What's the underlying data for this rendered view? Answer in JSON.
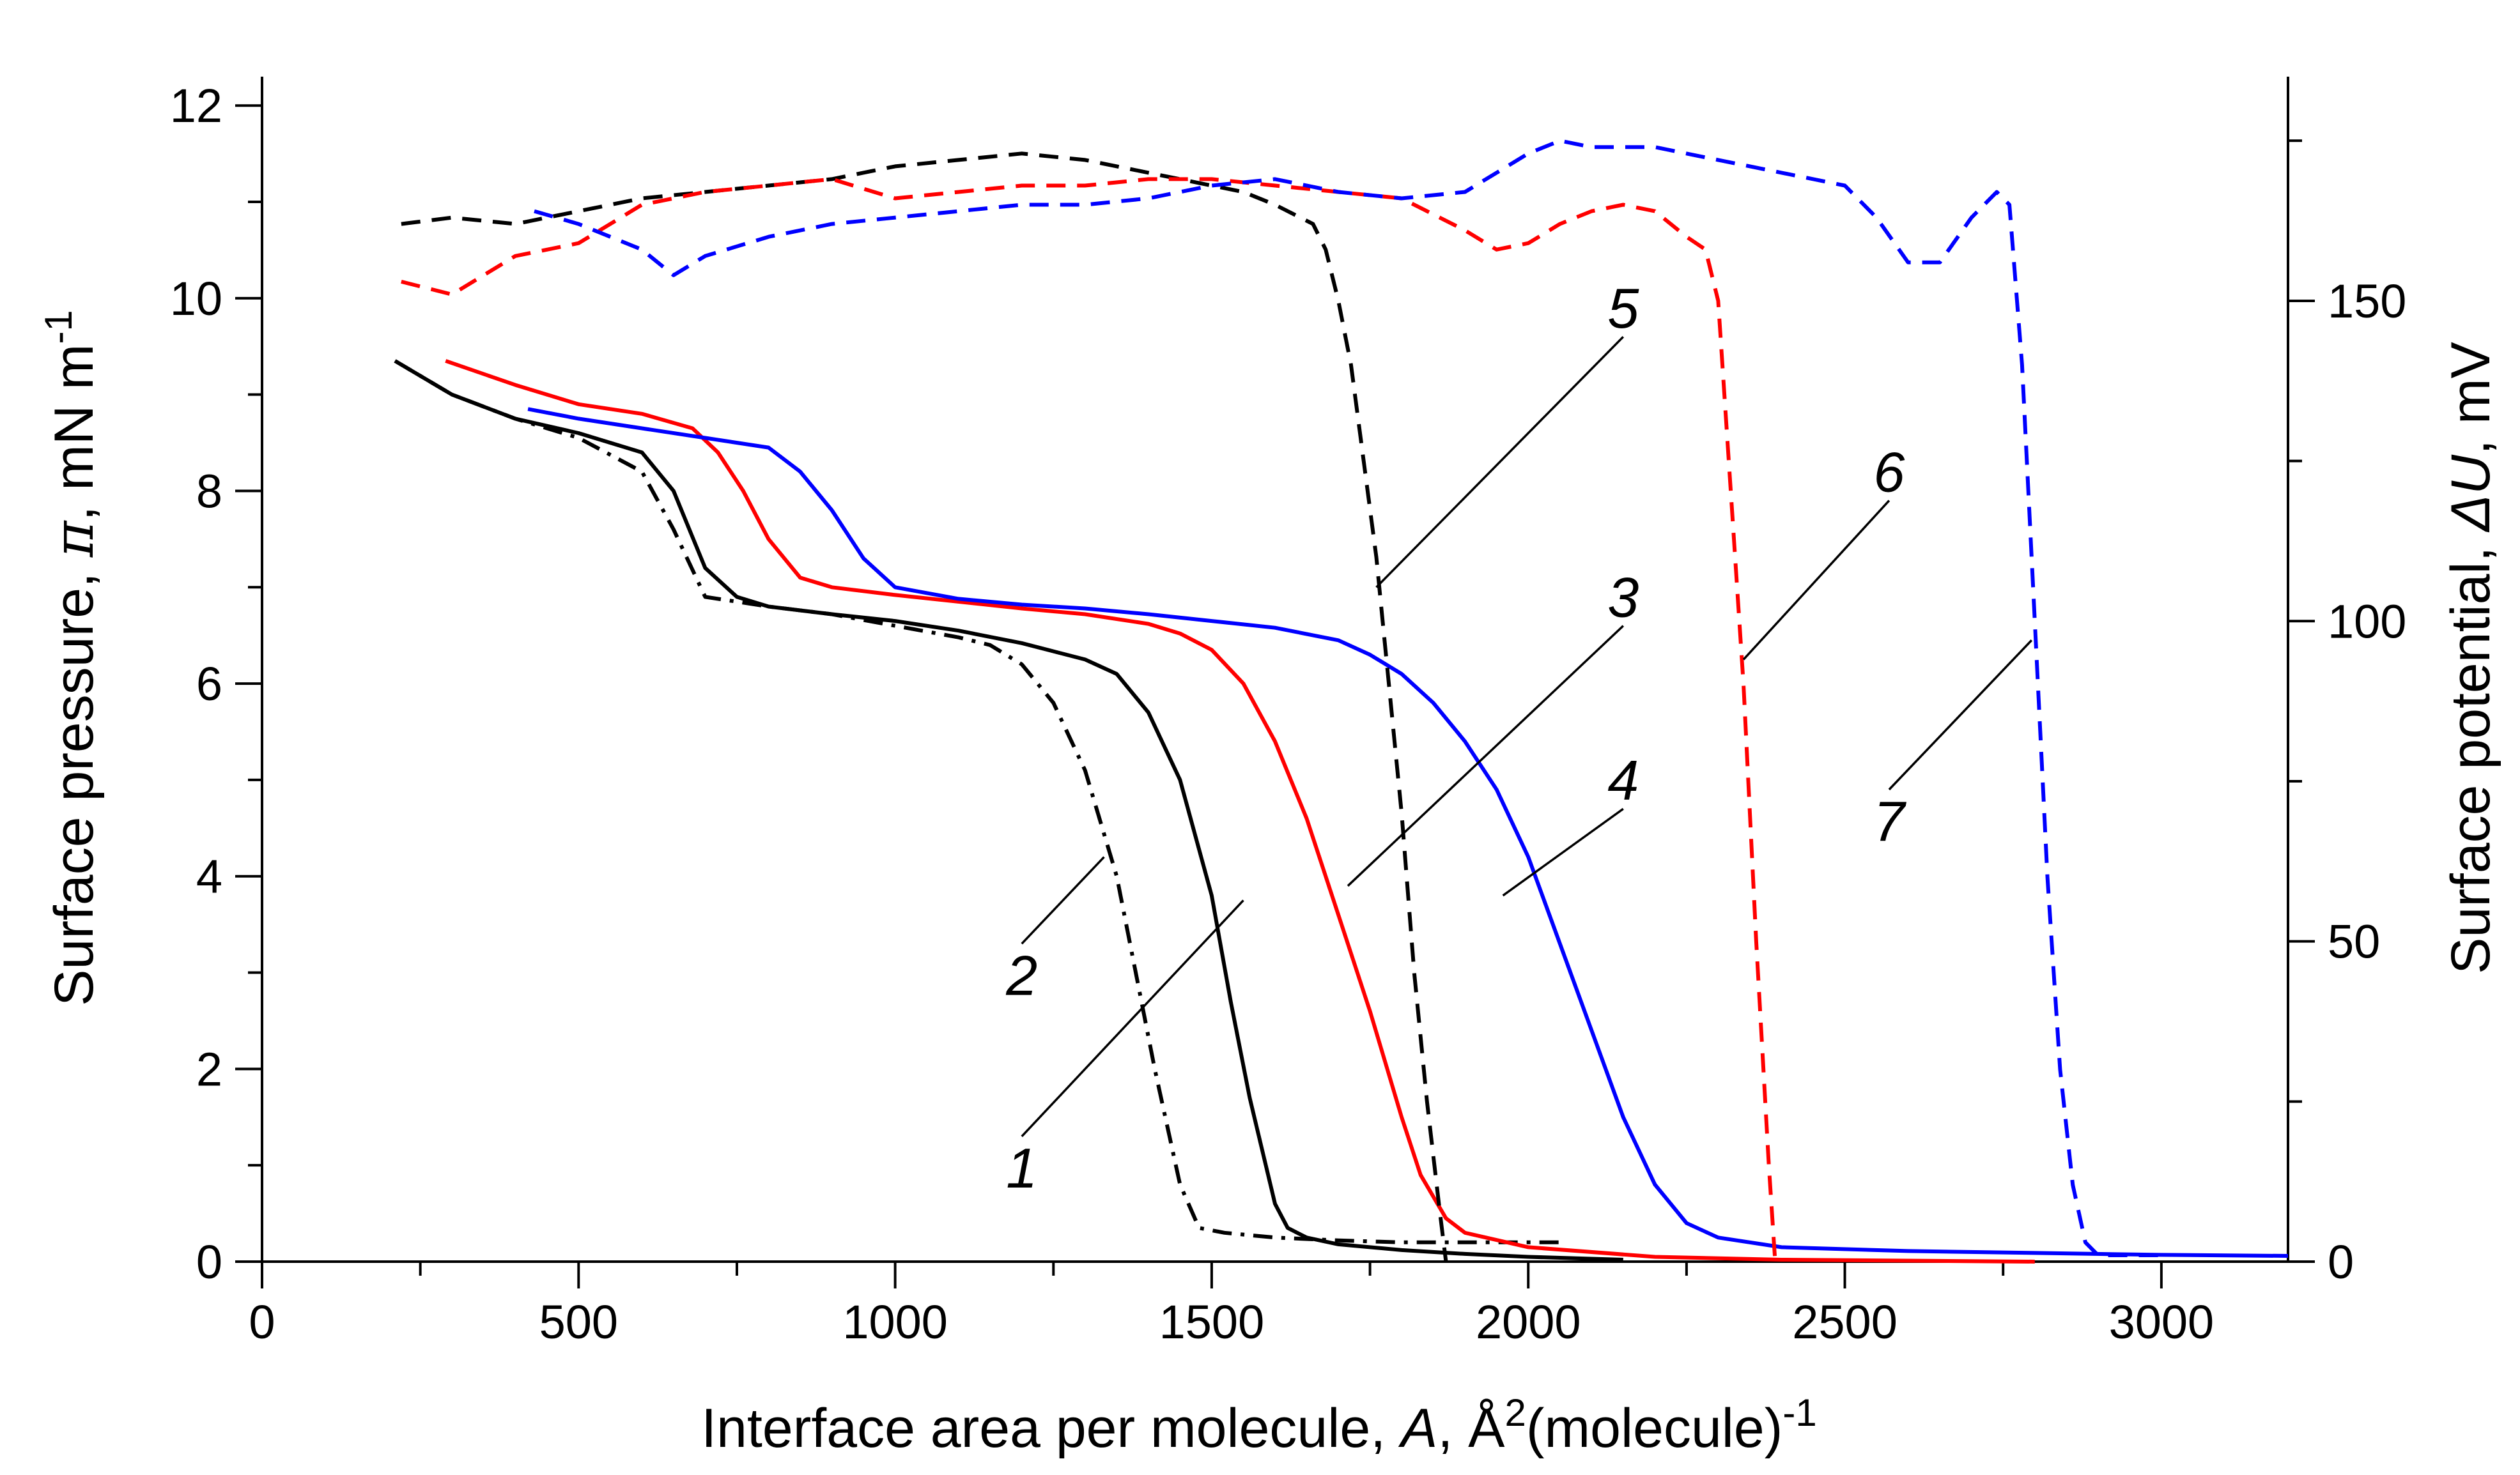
{
  "chart_data": {
    "type": "line",
    "xlabel": {
      "main": "Interface area per molecule, ",
      "italic": "A",
      "sep": ", ",
      "unit": "Å",
      "sup": "2",
      "tail": "(molecule)",
      "tail_sup": "-1"
    },
    "ylabel_left": {
      "main": "Surface pressure, ",
      "symbol": "π",
      "unit": ", mN m",
      "sup": "-1"
    },
    "ylabel_right": {
      "main": "Surface potential, ",
      "symbol": "ΔU",
      "unit": ", mV"
    },
    "xlim": [
      0,
      3200
    ],
    "ylim_left": [
      0,
      12.3
    ],
    "ylim_right": [
      0,
      185
    ],
    "x_ticks": [
      0,
      500,
      1000,
      1500,
      2000,
      2500,
      3000
    ],
    "x_tick_labels": [
      "0",
      "500",
      "1000",
      "1500",
      "2000",
      "2500",
      "3000"
    ],
    "y_left_ticks": [
      0,
      2,
      4,
      6,
      8,
      10,
      12
    ],
    "y_left_tick_labels": [
      "0",
      "2",
      "4",
      "6",
      "8",
      "10",
      "12"
    ],
    "y_right_ticks": [
      0,
      50,
      100,
      150
    ],
    "y_right_tick_labels": [
      "0",
      "50",
      "100",
      "150"
    ],
    "colors": {
      "black": "#000000",
      "red": "#ff0000",
      "blue": "#0000ff"
    },
    "series": [
      {
        "id": "1",
        "axis": "left",
        "color": "black",
        "dash": "solid",
        "x": [
          210,
          300,
          400,
          500,
          600,
          650,
          700,
          750,
          800,
          900,
          1000,
          1100,
          1200,
          1300,
          1350,
          1400,
          1450,
          1500,
          1530,
          1560,
          1600,
          1620,
          1650,
          1700,
          1800,
          1900,
          2000,
          2100,
          2150
        ],
        "y": [
          9.35,
          9.0,
          8.75,
          8.6,
          8.4,
          8.0,
          7.2,
          6.9,
          6.8,
          6.72,
          6.65,
          6.55,
          6.42,
          6.25,
          6.1,
          5.7,
          5.0,
          3.8,
          2.7,
          1.7,
          0.6,
          0.35,
          0.25,
          0.18,
          0.12,
          0.08,
          0.05,
          0.03,
          0.02
        ]
      },
      {
        "id": "2",
        "axis": "left",
        "color": "black",
        "dash": "dashdot",
        "x": [
          210,
          300,
          400,
          500,
          600,
          650,
          700,
          750,
          800,
          900,
          1000,
          1100,
          1150,
          1200,
          1250,
          1300,
          1350,
          1380,
          1410,
          1450,
          1480,
          1520,
          1600,
          1700,
          1800,
          1900,
          2000,
          2050
        ],
        "y": [
          9.35,
          9.0,
          8.75,
          8.55,
          8.2,
          7.6,
          6.9,
          6.85,
          6.8,
          6.72,
          6.6,
          6.48,
          6.4,
          6.2,
          5.8,
          5.1,
          4.0,
          3.0,
          2.0,
          0.8,
          0.35,
          0.3,
          0.25,
          0.22,
          0.2,
          0.2,
          0.2,
          0.2
        ]
      },
      {
        "id": "3",
        "axis": "left",
        "color": "red",
        "dash": "solid",
        "x": [
          290,
          400,
          500,
          600,
          680,
          720,
          760,
          800,
          850,
          900,
          1000,
          1100,
          1200,
          1300,
          1400,
          1450,
          1500,
          1550,
          1600,
          1650,
          1700,
          1750,
          1800,
          1830,
          1870,
          1900,
          2000,
          2200,
          2400,
          2600,
          2800
        ],
        "y": [
          9.35,
          9.1,
          8.9,
          8.8,
          8.65,
          8.4,
          8.0,
          7.5,
          7.1,
          7.0,
          6.92,
          6.85,
          6.78,
          6.72,
          6.62,
          6.52,
          6.35,
          6.0,
          5.4,
          4.6,
          3.6,
          2.6,
          1.5,
          0.9,
          0.45,
          0.3,
          0.15,
          0.05,
          0.02,
          0.01,
          0.0
        ]
      },
      {
        "id": "4",
        "axis": "left",
        "color": "blue",
        "dash": "solid",
        "x": [
          420,
          500,
          600,
          700,
          800,
          850,
          900,
          950,
          1000,
          1100,
          1200,
          1300,
          1400,
          1500,
          1600,
          1700,
          1750,
          1800,
          1850,
          1900,
          1950,
          2000,
          2050,
          2100,
          2150,
          2200,
          2250,
          2300,
          2400,
          2600,
          2800,
          3000,
          3200
        ],
        "y": [
          8.85,
          8.75,
          8.65,
          8.55,
          8.45,
          8.2,
          7.8,
          7.3,
          7.0,
          6.88,
          6.82,
          6.78,
          6.72,
          6.65,
          6.58,
          6.45,
          6.3,
          6.1,
          5.8,
          5.4,
          4.9,
          4.2,
          3.3,
          2.4,
          1.5,
          0.8,
          0.4,
          0.25,
          0.15,
          0.11,
          0.09,
          0.07,
          0.06
        ]
      },
      {
        "id": "5",
        "axis": "right",
        "color": "black",
        "dash": "dashed",
        "x": [
          220,
          300,
          400,
          500,
          600,
          700,
          800,
          900,
          1000,
          1100,
          1200,
          1300,
          1400,
          1500,
          1550,
          1600,
          1640,
          1660,
          1680,
          1700,
          1720,
          1740,
          1760,
          1780,
          1800,
          1820,
          1840,
          1860,
          1870
        ],
        "y": [
          162,
          163,
          162,
          164,
          166,
          167,
          168,
          169,
          171,
          172,
          173,
          172,
          170,
          168,
          167,
          165,
          163,
          162,
          158,
          150,
          140,
          125,
          110,
          90,
          70,
          45,
          25,
          8,
          0
        ]
      },
      {
        "id": "6",
        "axis": "right",
        "color": "red",
        "dash": "dashed",
        "x": [
          220,
          300,
          400,
          500,
          600,
          700,
          800,
          900,
          1000,
          1100,
          1200,
          1300,
          1400,
          1500,
          1600,
          1700,
          1800,
          1900,
          1950,
          2000,
          2050,
          2100,
          2150,
          2200,
          2250,
          2280,
          2300,
          2320,
          2340,
          2360,
          2380,
          2390
        ],
        "y": [
          153,
          151,
          157,
          159,
          165,
          167,
          168,
          169,
          166,
          167,
          168,
          168,
          169,
          169,
          168,
          167,
          166,
          161,
          158,
          159,
          162,
          164,
          165,
          164,
          160,
          158,
          150,
          120,
          90,
          50,
          15,
          0
        ]
      },
      {
        "id": "7",
        "axis": "right",
        "color": "blue",
        "dash": "dashed",
        "x": [
          430,
          500,
          600,
          650,
          700,
          800,
          900,
          1000,
          1100,
          1200,
          1300,
          1400,
          1500,
          1600,
          1700,
          1800,
          1900,
          1950,
          2000,
          2050,
          2100,
          2200,
          2300,
          2400,
          2500,
          2550,
          2600,
          2650,
          2700,
          2740,
          2760,
          2780,
          2800,
          2820,
          2840,
          2860,
          2880,
          2900,
          3000
        ],
        "y": [
          164,
          162,
          158,
          154,
          157,
          160,
          162,
          163,
          164,
          165,
          165,
          166,
          168,
          169,
          167,
          166,
          167,
          170,
          173,
          175,
          174,
          174,
          172,
          170,
          168,
          163,
          156,
          156,
          163,
          167,
          165,
          140,
          100,
          60,
          30,
          12,
          3,
          1,
          1
        ]
      }
    ],
    "annotations": [
      {
        "text": "1",
        "x": 1200,
        "y_left": 1.3,
        "leader_to": {
          "x": 1550,
          "y_left": 3.75
        }
      },
      {
        "text": "2",
        "x": 1200,
        "y_left": 3.3,
        "leader_to": {
          "x": 1330,
          "y_left": 4.2
        }
      },
      {
        "text": "3",
        "x": 2150,
        "y_left": 6.6,
        "leader_to": {
          "x": 1715,
          "y_left": 3.9
        }
      },
      {
        "text": "4",
        "x": 2150,
        "y_left": 4.7,
        "leader_to": {
          "x": 1960,
          "y_left": 3.8
        }
      },
      {
        "text": "5",
        "x": 2150,
        "y_left": 9.6,
        "leader_to": {
          "x": 1760,
          "y_left": 7.0
        }
      },
      {
        "text": "6",
        "x": 2570,
        "y_left": 7.9,
        "leader_to": {
          "x": 2340,
          "y_left": 6.25
        }
      },
      {
        "text": "7",
        "x": 2570,
        "y_left": 4.9,
        "leader_to": {
          "x": 2795,
          "y_left": 6.45
        }
      }
    ],
    "grid": false,
    "legend": "none"
  }
}
